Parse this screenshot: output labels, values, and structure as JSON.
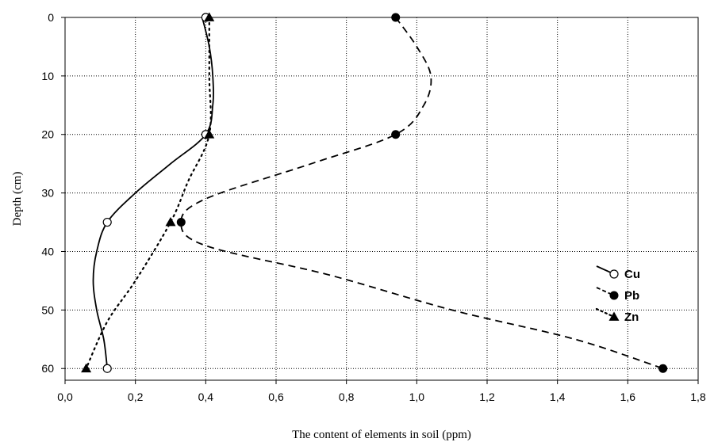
{
  "chart_data": {
    "type": "line",
    "title": "",
    "xlabel": "The content of elements in soil (ppm)",
    "ylabel": "Depth (cm)",
    "xlim": [
      0,
      1.8
    ],
    "ylim": [
      0,
      62
    ],
    "y_inverted": true,
    "x_ticks": [
      "0,0",
      "0,2",
      "0,4",
      "0,6",
      "0,8",
      "1,0",
      "1,2",
      "1,4",
      "1,6",
      "1,8"
    ],
    "y_ticks": [
      "0",
      "10",
      "20",
      "30",
      "40",
      "50",
      "60"
    ],
    "grid": true,
    "legend_position": "right",
    "series": [
      {
        "name": "Cu",
        "marker": "open-circle",
        "line_style": "solid",
        "points": [
          [
            0.4,
            0
          ],
          [
            0.4,
            20
          ],
          [
            0.12,
            35
          ],
          [
            0.12,
            60
          ]
        ],
        "curve": [
          [
            0.39,
            0
          ],
          [
            0.41,
            5
          ],
          [
            0.42,
            10
          ],
          [
            0.42,
            15
          ],
          [
            0.4,
            20
          ],
          [
            0.3,
            25
          ],
          [
            0.2,
            30
          ],
          [
            0.12,
            35
          ],
          [
            0.09,
            40
          ],
          [
            0.08,
            45
          ],
          [
            0.09,
            50
          ],
          [
            0.11,
            55
          ],
          [
            0.12,
            60
          ]
        ]
      },
      {
        "name": "Pb",
        "marker": "filled-circle",
        "line_style": "dashed",
        "points": [
          [
            0.94,
            0
          ],
          [
            0.94,
            20
          ],
          [
            0.33,
            35
          ],
          [
            1.7,
            60
          ]
        ],
        "curve": [
          [
            0.94,
            0
          ],
          [
            1.0,
            5
          ],
          [
            1.04,
            10
          ],
          [
            1.02,
            15
          ],
          [
            0.94,
            20
          ],
          [
            0.7,
            25
          ],
          [
            0.4,
            31
          ],
          [
            0.33,
            35
          ],
          [
            0.4,
            39
          ],
          [
            0.75,
            44
          ],
          [
            1.1,
            50
          ],
          [
            1.45,
            55
          ],
          [
            1.7,
            60
          ]
        ]
      },
      {
        "name": "Zn",
        "marker": "filled-triangle",
        "line_style": "dotted",
        "points": [
          [
            0.41,
            0
          ],
          [
            0.41,
            20
          ],
          [
            0.3,
            35
          ],
          [
            0.06,
            60
          ]
        ],
        "curve": [
          [
            0.41,
            0
          ],
          [
            0.41,
            10
          ],
          [
            0.41,
            20
          ],
          [
            0.35,
            28
          ],
          [
            0.3,
            35
          ],
          [
            0.2,
            45
          ],
          [
            0.12,
            52
          ],
          [
            0.06,
            60
          ]
        ]
      }
    ]
  }
}
